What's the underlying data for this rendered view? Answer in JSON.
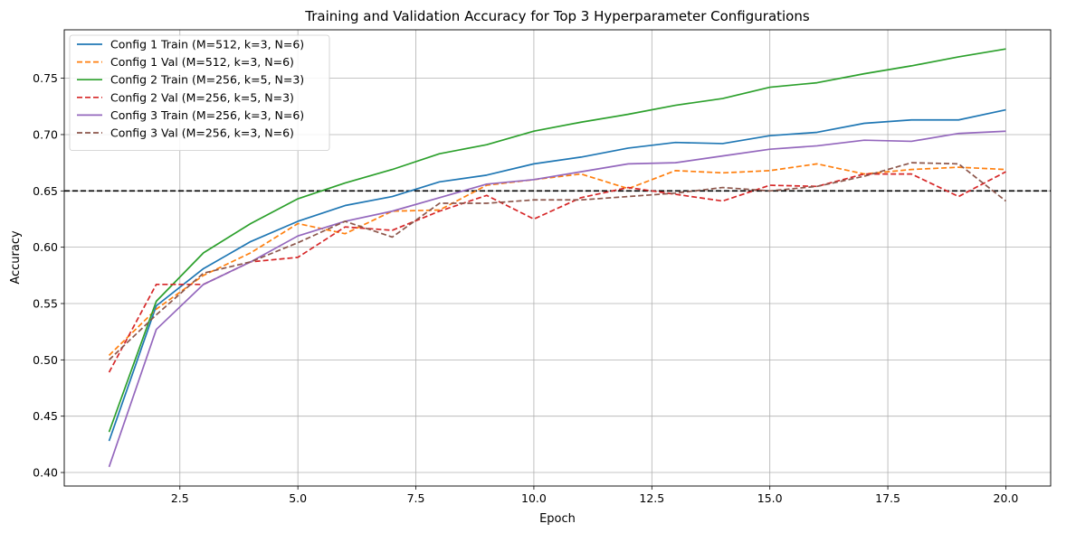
{
  "chart_data": {
    "type": "line",
    "title": "Training and Validation Accuracy for Top 3 Hyperparameter Configurations",
    "xlabel": "Epoch",
    "ylabel": "Accuracy",
    "xlim": [
      0.05,
      20.95
    ],
    "ylim": [
      0.388,
      0.793
    ],
    "x_ticks": [
      2.5,
      5.0,
      7.5,
      10.0,
      12.5,
      15.0,
      17.5,
      20.0
    ],
    "x_tick_labels": [
      "2.5",
      "5.0",
      "7.5",
      "10.0",
      "12.5",
      "15.0",
      "17.5",
      "20.0"
    ],
    "y_ticks": [
      0.4,
      0.45,
      0.5,
      0.55,
      0.6,
      0.65,
      0.7,
      0.75
    ],
    "y_tick_labels": [
      "0.40",
      "0.45",
      "0.50",
      "0.55",
      "0.60",
      "0.65",
      "0.70",
      "0.75"
    ],
    "grid": true,
    "legend_position": "top-left",
    "reference_line": {
      "y": 0.65,
      "color": "#000000",
      "style": "dashed"
    },
    "x": [
      1,
      2,
      3,
      4,
      5,
      6,
      7,
      8,
      9,
      10,
      11,
      12,
      13,
      14,
      15,
      16,
      17,
      18,
      19,
      20
    ],
    "series": [
      {
        "name": "Config 1 Train (M=512, k=3, N=6)",
        "color": "#1f77b4",
        "style": "solid",
        "values": [
          0.428,
          0.548,
          0.581,
          0.605,
          0.623,
          0.637,
          0.645,
          0.658,
          0.664,
          0.674,
          0.68,
          0.688,
          0.693,
          0.692,
          0.699,
          0.702,
          0.71,
          0.713,
          0.713,
          0.722
        ]
      },
      {
        "name": "Config 1 Val (M=512, k=3, N=6)",
        "color": "#ff7f0e",
        "style": "dashed",
        "values": [
          0.504,
          0.545,
          0.575,
          0.595,
          0.621,
          0.612,
          0.632,
          0.633,
          0.655,
          0.66,
          0.665,
          0.652,
          0.668,
          0.666,
          0.668,
          0.674,
          0.665,
          0.669,
          0.671,
          0.669
        ]
      },
      {
        "name": "Config 2 Train (M=256, k=5, N=3)",
        "color": "#2ca02c",
        "style": "solid",
        "values": [
          0.436,
          0.552,
          0.595,
          0.621,
          0.643,
          0.657,
          0.669,
          0.683,
          0.691,
          0.703,
          0.711,
          0.718,
          0.726,
          0.732,
          0.742,
          0.746,
          0.754,
          0.761,
          0.769,
          0.776
        ]
      },
      {
        "name": "Config 2 Val (M=256, k=5, N=3)",
        "color": "#d62728",
        "style": "dashed",
        "values": [
          0.489,
          0.567,
          0.567,
          0.587,
          0.591,
          0.618,
          0.615,
          0.632,
          0.646,
          0.625,
          0.644,
          0.653,
          0.647,
          0.641,
          0.655,
          0.654,
          0.665,
          0.665,
          0.645,
          0.667
        ]
      },
      {
        "name": "Config 3 Train (M=256, k=3, N=6)",
        "color": "#9467bd",
        "style": "solid",
        "values": [
          0.405,
          0.527,
          0.567,
          0.587,
          0.61,
          0.623,
          0.632,
          0.644,
          0.656,
          0.66,
          0.667,
          0.674,
          0.675,
          0.681,
          0.687,
          0.69,
          0.695,
          0.694,
          0.701,
          0.703
        ]
      },
      {
        "name": "Config 3 Val (M=256, k=3, N=6)",
        "color": "#8c564b",
        "style": "dashed",
        "values": [
          0.5,
          0.54,
          0.577,
          0.587,
          0.604,
          0.623,
          0.609,
          0.639,
          0.639,
          0.642,
          0.642,
          0.645,
          0.648,
          0.653,
          0.65,
          0.654,
          0.663,
          0.675,
          0.674,
          0.641
        ]
      }
    ]
  }
}
